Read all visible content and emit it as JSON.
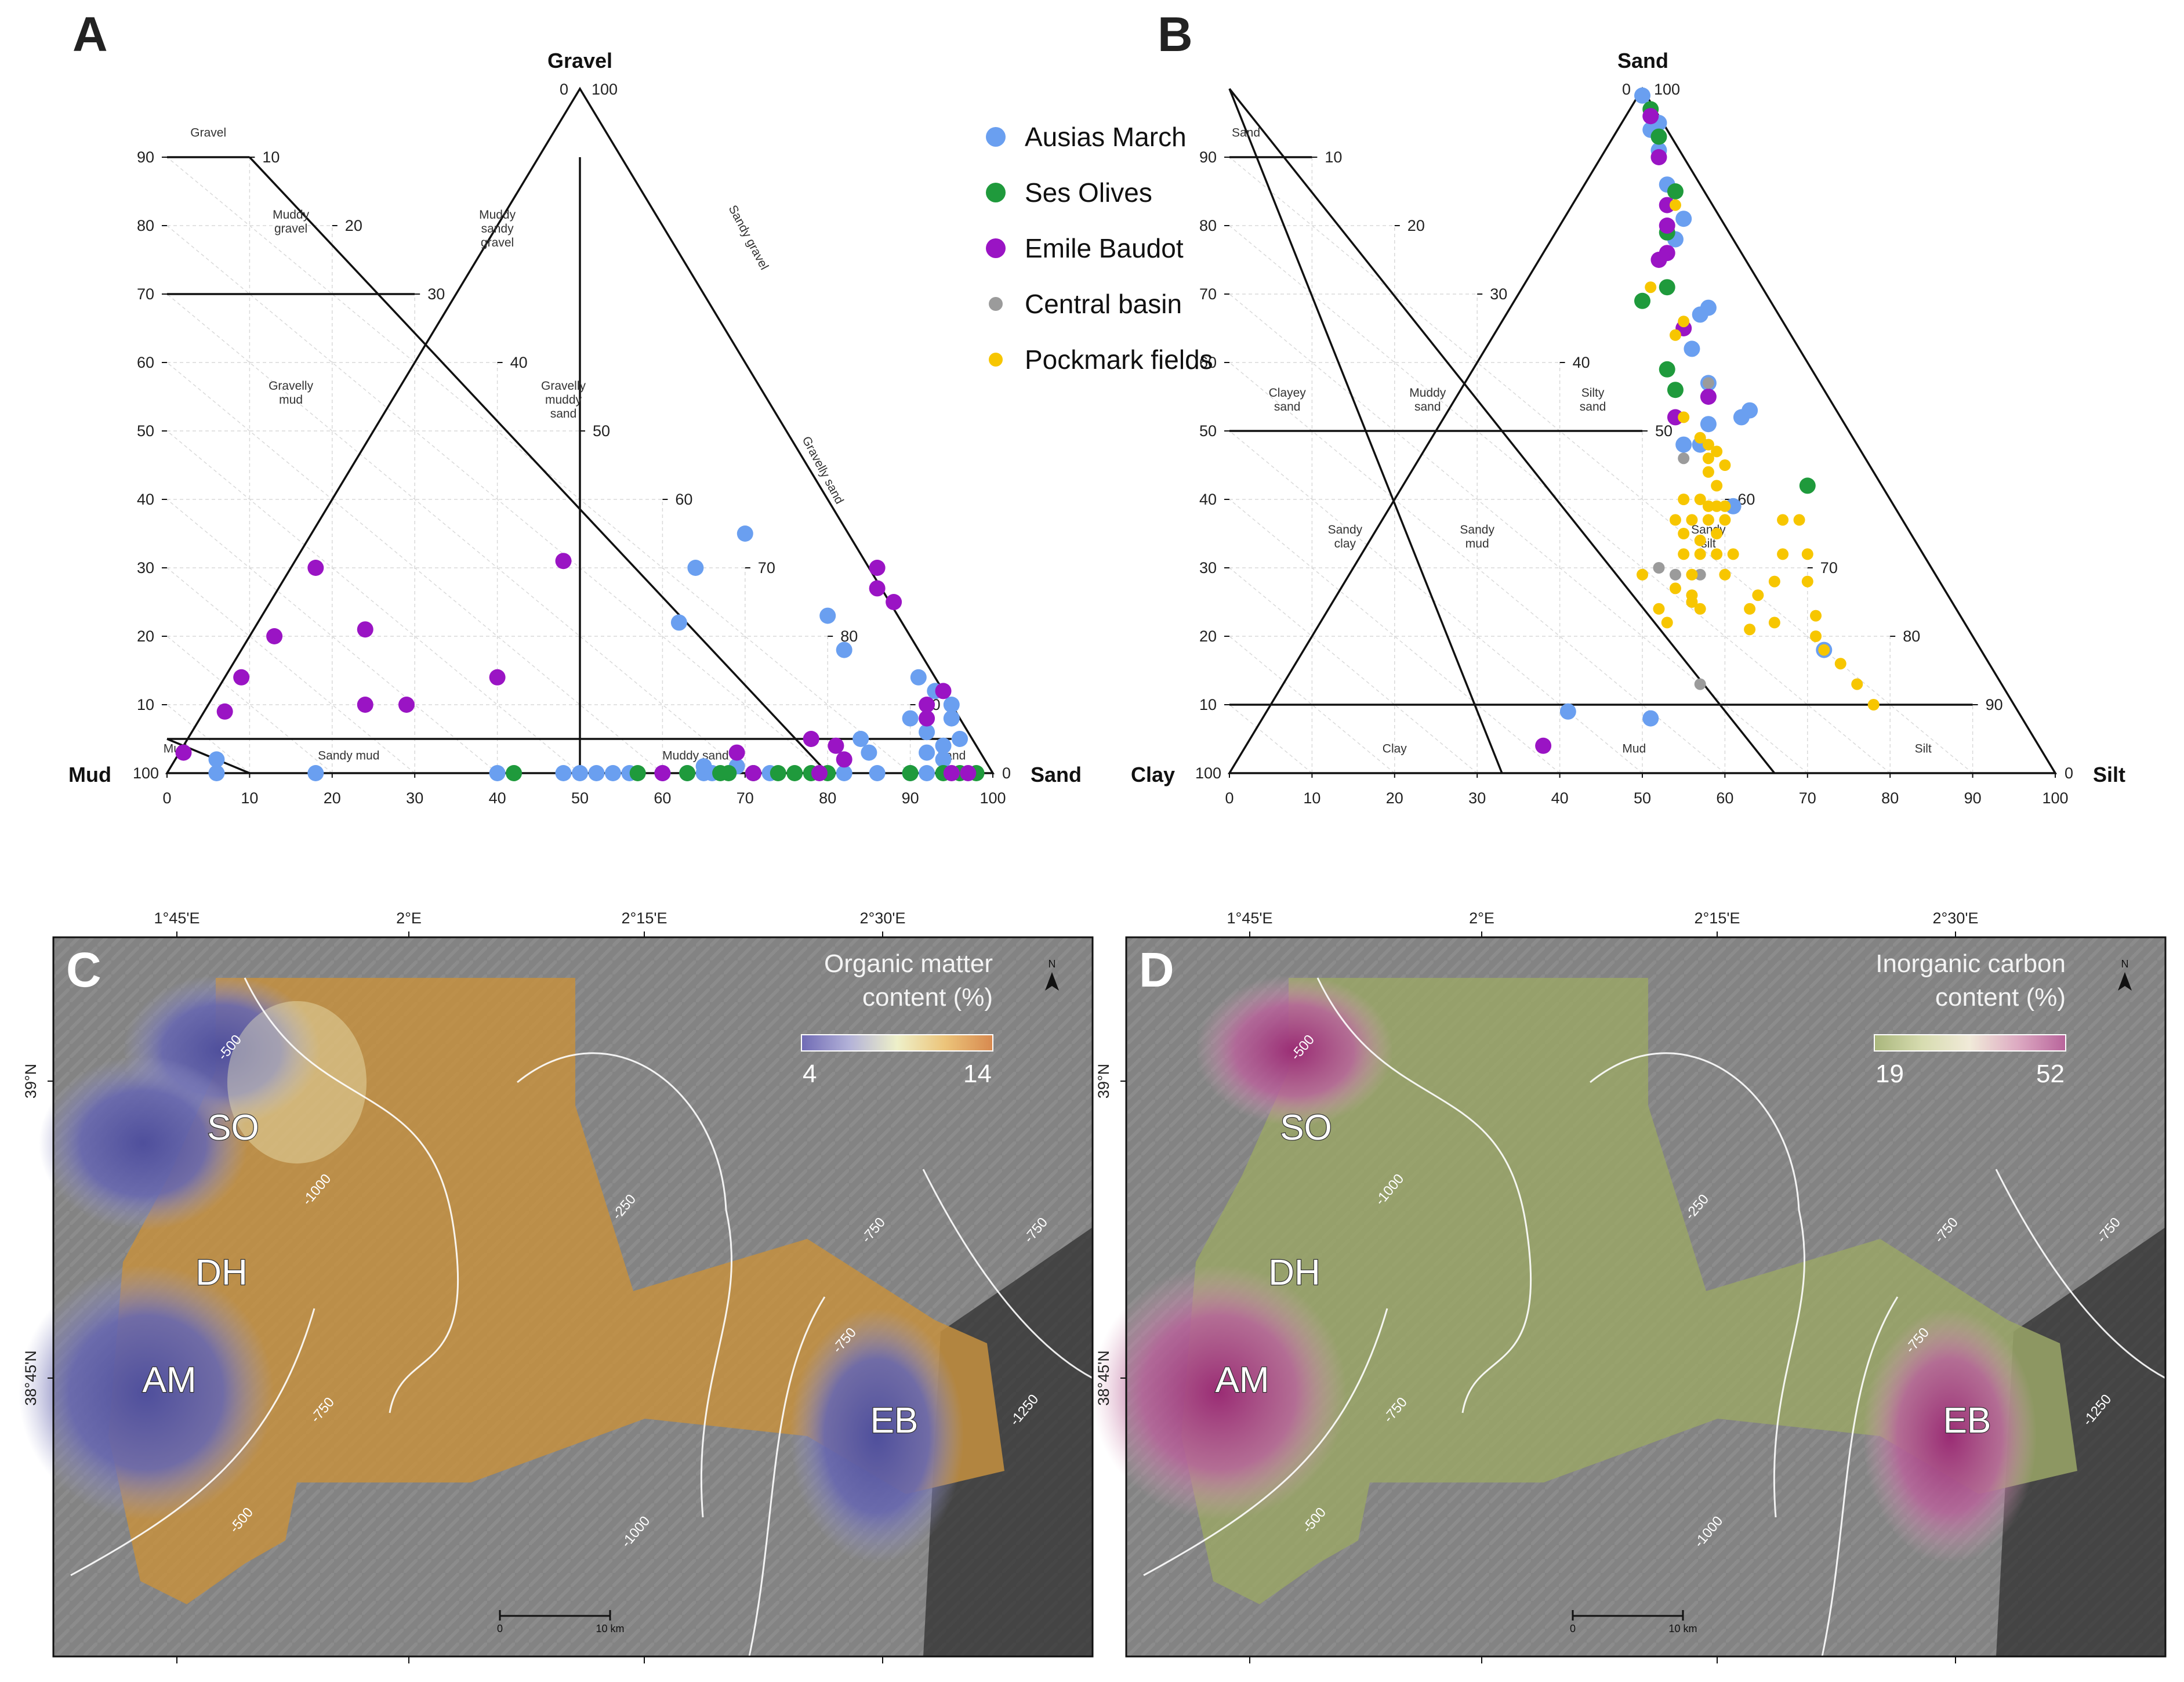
{
  "panels": {
    "a": "A",
    "b": "B",
    "c": "C",
    "d": "D"
  },
  "colors": {
    "ausias_march": "#6a9ff0",
    "ses_olives": "#1f9a3c",
    "emile_baudot": "#9a14c4",
    "central_basin": "#9b9b9b",
    "pockmark_fields": "#f7c600"
  },
  "legend": [
    {
      "key": "ausias_march",
      "label": "Ausias March",
      "size": "large"
    },
    {
      "key": "ses_olives",
      "label": "Ses Olives",
      "size": "large"
    },
    {
      "key": "emile_baudot",
      "label": "Emile Baudot",
      "size": "large"
    },
    {
      "key": "central_basin",
      "label": "Central basin",
      "size": "small"
    },
    {
      "key": "pockmark_fields",
      "label": "Pockmark fields",
      "size": "small"
    }
  ],
  "chart_data": [
    {
      "type": "scatter",
      "subtype": "ternary",
      "title": "A",
      "vertices": {
        "top": "Gravel",
        "left": "Mud",
        "right": "Sand"
      },
      "top_ticks": [
        "0",
        "10",
        "20",
        "30",
        "40",
        "50",
        "60",
        "70",
        "80",
        "90",
        "100"
      ],
      "bottom_ticks": [
        "0",
        "10",
        "20",
        "30",
        "40",
        "50",
        "60",
        "70",
        "80",
        "90",
        "100"
      ],
      "side_ticks_left": [
        "10",
        "20",
        "30",
        "40",
        "50",
        "60",
        "70",
        "80",
        "90"
      ],
      "side_ticks_right": [
        "90",
        "80",
        "70",
        "60",
        "50",
        "40",
        "30",
        "20",
        "10"
      ],
      "vertex_left_value": "100",
      "vertex_right_value": "0",
      "zones": [
        {
          "label": "Gravel"
        },
        {
          "label": "Muddy\ngravel"
        },
        {
          "label": "Muddy\nsandy\ngravel"
        },
        {
          "label": "Sandy gravel"
        },
        {
          "label": "Gravelly\nmud"
        },
        {
          "label": "Gravelly\nmuddy\nsand"
        },
        {
          "label": "Gravelly sand"
        },
        {
          "label": "Mud"
        },
        {
          "label": "Sandy mud"
        },
        {
          "label": "Muddy sand"
        },
        {
          "label": "Sand"
        }
      ],
      "series": [
        {
          "key": "ausias_march",
          "points": [
            [
              65,
              0
            ],
            [
              65,
              1
            ],
            [
              69,
              1
            ],
            [
              6,
              2
            ],
            [
              6,
              0
            ],
            [
              40,
              0
            ],
            [
              18,
              0
            ],
            [
              48,
              0
            ],
            [
              50,
              0
            ],
            [
              52,
              0
            ],
            [
              54,
              0
            ],
            [
              56,
              0
            ],
            [
              60,
              0
            ],
            [
              63,
              0
            ],
            [
              66,
              0
            ],
            [
              73,
              0
            ],
            [
              82,
              0
            ],
            [
              86,
              0
            ],
            [
              90,
              0
            ],
            [
              92,
              0
            ],
            [
              70,
              35
            ],
            [
              64,
              30
            ],
            [
              80,
              23
            ],
            [
              82,
              18
            ],
            [
              62,
              22
            ],
            [
              91,
              14
            ],
            [
              95,
              10
            ],
            [
              93,
              12
            ],
            [
              90,
              8
            ],
            [
              92,
              6
            ],
            [
              94,
              4
            ],
            [
              96,
              5
            ],
            [
              92,
              3
            ],
            [
              94,
              2
            ],
            [
              95,
              8
            ],
            [
              84,
              5
            ],
            [
              85,
              3
            ]
          ]
        },
        {
          "key": "ses_olives",
          "points": [
            [
              42,
              0
            ],
            [
              57,
              0
            ],
            [
              63,
              0
            ],
            [
              68,
              0
            ],
            [
              71,
              0
            ],
            [
              74,
              0
            ],
            [
              76,
              0
            ],
            [
              80,
              0
            ],
            [
              90,
              0
            ],
            [
              94,
              0
            ],
            [
              96,
              0
            ],
            [
              98,
              0
            ],
            [
              67,
              0
            ],
            [
              78,
              0
            ]
          ]
        },
        {
          "key": "emile_baudot",
          "points": [
            [
              2,
              3
            ],
            [
              7,
              9
            ],
            [
              9,
              14
            ],
            [
              13,
              20
            ],
            [
              24,
              21
            ],
            [
              24,
              10
            ],
            [
              29,
              10
            ],
            [
              40,
              14
            ],
            [
              48,
              31
            ],
            [
              18,
              30
            ],
            [
              86,
              30
            ],
            [
              86,
              27
            ],
            [
              88,
              25
            ],
            [
              92,
              10
            ],
            [
              94,
              12
            ],
            [
              92,
              8
            ],
            [
              78,
              5
            ],
            [
              81,
              4
            ],
            [
              69,
              3
            ],
            [
              79,
              0
            ],
            [
              60,
              0
            ],
            [
              71,
              0
            ],
            [
              95,
              0
            ],
            [
              97,
              0
            ],
            [
              82,
              2
            ]
          ]
        }
      ]
    },
    {
      "type": "scatter",
      "subtype": "ternary",
      "title": "B",
      "vertices": {
        "top": "Sand",
        "left": "Clay",
        "right": "Silt"
      },
      "top_ticks": [
        "0",
        "10",
        "20",
        "30",
        "40",
        "50",
        "60",
        "70",
        "80",
        "90",
        "100"
      ],
      "bottom_ticks": [
        "0",
        "10",
        "20",
        "30",
        "40",
        "50",
        "60",
        "70",
        "80",
        "90",
        "100"
      ],
      "side_ticks_left": [
        "10",
        "20",
        "30",
        "40",
        "50",
        "60",
        "70",
        "80",
        "90"
      ],
      "side_ticks_right": [
        "90",
        "80",
        "70",
        "60",
        "50",
        "40",
        "30",
        "20",
        "10"
      ],
      "vertex_left_value": "100",
      "vertex_right_value": "0",
      "zones": [
        {
          "label": "Sand"
        },
        {
          "label": "Clayey\nsand"
        },
        {
          "label": "Muddy\nsand"
        },
        {
          "label": "Silty\nsand"
        },
        {
          "label": "Sandy\nclay"
        },
        {
          "label": "Sandy\nmud"
        },
        {
          "label": "Sandy\nsilt"
        },
        {
          "label": "Clay"
        },
        {
          "label": "Mud"
        },
        {
          "label": "Silt"
        }
      ],
      "series": [
        {
          "key": "ausias_march",
          "points": [
            [
              50,
              99
            ],
            [
              51,
              94
            ],
            [
              52,
              95
            ],
            [
              52,
              91
            ],
            [
              53,
              86
            ],
            [
              55,
              81
            ],
            [
              54,
              78
            ],
            [
              57,
              67
            ],
            [
              58,
              68
            ],
            [
              56,
              62
            ],
            [
              58,
              57
            ],
            [
              58,
              51
            ],
            [
              57,
              48
            ],
            [
              62,
              52
            ],
            [
              63,
              53
            ],
            [
              61,
              39
            ],
            [
              72,
              18
            ],
            [
              41,
              9
            ],
            [
              51,
              8
            ],
            [
              55,
              48
            ]
          ]
        },
        {
          "key": "ses_olives",
          "points": [
            [
              51,
              97
            ],
            [
              52,
              93
            ],
            [
              54,
              85
            ],
            [
              53,
              79
            ],
            [
              50,
              69
            ],
            [
              53,
              71
            ],
            [
              53,
              59
            ],
            [
              54,
              56
            ],
            [
              70,
              42
            ]
          ]
        },
        {
          "key": "emile_baudot",
          "points": [
            [
              51,
              96
            ],
            [
              52,
              90
            ],
            [
              53,
              83
            ],
            [
              53,
              80
            ],
            [
              53,
              76
            ],
            [
              52,
              75
            ],
            [
              55,
              65
            ],
            [
              58,
              55
            ],
            [
              54,
              52
            ],
            [
              38,
              4
            ]
          ]
        },
        {
          "key": "central_basin",
          "points": [
            [
              58,
              57
            ],
            [
              55,
              46
            ],
            [
              52,
              30
            ],
            [
              54,
              29
            ],
            [
              57,
              29
            ],
            [
              57,
              13
            ]
          ]
        },
        {
          "key": "pockmark_fields",
          "points": [
            [
              54,
              83
            ],
            [
              51,
              71
            ],
            [
              55,
              66
            ],
            [
              54,
              64
            ],
            [
              55,
              52
            ],
            [
              57,
              49
            ],
            [
              58,
              48
            ],
            [
              59,
              47
            ],
            [
              58,
              46
            ],
            [
              60,
              45
            ],
            [
              58,
              44
            ],
            [
              59,
              42
            ],
            [
              55,
              40
            ],
            [
              57,
              40
            ],
            [
              58,
              39
            ],
            [
              59,
              39
            ],
            [
              60,
              39
            ],
            [
              54,
              37
            ],
            [
              56,
              37
            ],
            [
              58,
              37
            ],
            [
              60,
              37
            ],
            [
              55,
              35
            ],
            [
              57,
              34
            ],
            [
              59,
              35
            ],
            [
              67,
              37
            ],
            [
              69,
              37
            ],
            [
              55,
              32
            ],
            [
              57,
              32
            ],
            [
              59,
              32
            ],
            [
              61,
              32
            ],
            [
              67,
              32
            ],
            [
              70,
              32
            ],
            [
              50,
              29
            ],
            [
              56,
              29
            ],
            [
              60,
              29
            ],
            [
              66,
              28
            ],
            [
              70,
              28
            ],
            [
              54,
              27
            ],
            [
              56,
              26
            ],
            [
              64,
              26
            ],
            [
              52,
              24
            ],
            [
              56,
              25
            ],
            [
              53,
              22
            ],
            [
              57,
              24
            ],
            [
              63,
              24
            ],
            [
              66,
              22
            ],
            [
              71,
              23
            ],
            [
              63,
              21
            ],
            [
              71,
              20
            ],
            [
              72,
              18
            ],
            [
              74,
              16
            ],
            [
              76,
              13
            ],
            [
              78,
              10
            ]
          ]
        }
      ]
    }
  ],
  "maps": {
    "c": {
      "title_line1": "Organic matter",
      "title_line2": "content (%)",
      "colorbar_min": "4",
      "colorbar_max": "14",
      "colorbar_colors": [
        "#6f6ab5",
        "#b3b2d8",
        "#eef0c9",
        "#ecc47a",
        "#d7894f"
      ],
      "field_color": "#c6903f",
      "high_color": "#c6903f",
      "low_color": "#5e5ea8"
    },
    "d": {
      "title_line1": "Inorganic carbon",
      "title_line2": "content (%)",
      "colorbar_min": "19",
      "colorbar_max": "52",
      "colorbar_colors": [
        "#a9b67c",
        "#d7dcb0",
        "#f1ead9",
        "#ddaac2",
        "#b8649b"
      ],
      "field_color": "#9aa667",
      "high_color": "#a8357f",
      "low_color": "#9aa667"
    },
    "longitudes": [
      "1°45'E",
      "2°E",
      "2°15'E",
      "2°30'E"
    ],
    "latitudes": [
      "39°N",
      "38°45'N"
    ],
    "sites": [
      "SO",
      "DH",
      "AM",
      "EB"
    ],
    "contours": [
      "-500",
      "-1000",
      "-750",
      "-250",
      "-750",
      "-500",
      "-750",
      "-1000",
      "-750",
      "-1250"
    ],
    "scalebar": {
      "start": "0",
      "end": "10 km"
    },
    "north": "N"
  }
}
